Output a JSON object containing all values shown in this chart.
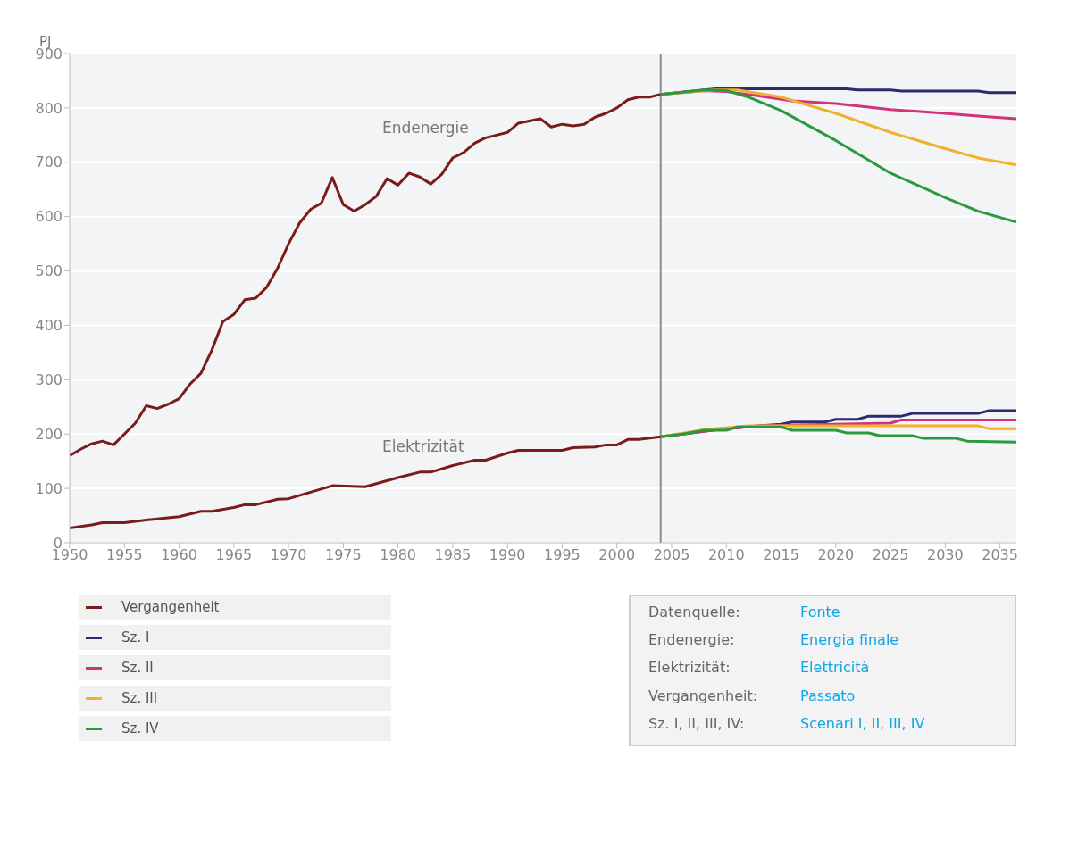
{
  "chart_data": {
    "type": "line",
    "ylabel": "PJ",
    "xlim": [
      1950,
      2036.5
    ],
    "xticks": [
      1950,
      1955,
      1960,
      1965,
      1970,
      1975,
      1980,
      1985,
      1990,
      1995,
      2000,
      2005,
      2010,
      2015,
      2020,
      2025,
      2030,
      2035
    ],
    "ylim": [
      0,
      900
    ],
    "yticks": [
      0,
      100,
      200,
      300,
      400,
      500,
      600,
      700,
      800,
      900
    ],
    "grid": "y",
    "legend": "bottom left",
    "marker": "none",
    "line_style": "solid",
    "ref_lines": [
      {
        "axis": "x",
        "value": 2004,
        "color": "#8c8c8c"
      }
    ],
    "series": [
      {
        "name": "Vergangenheit",
        "color": "#7b1c1c",
        "x": [
          1950,
          1951,
          1952,
          1953,
          1954,
          1955,
          1956,
          1957,
          1958,
          1959,
          1960,
          1961,
          1962,
          1963,
          1964,
          1965,
          1966,
          1967,
          1968,
          1969,
          1970,
          1971,
          1972,
          1973,
          1974,
          1975,
          1976,
          1977,
          1978,
          1979,
          1980,
          1981,
          1982,
          1983,
          1984,
          1985,
          1986,
          1987,
          1988,
          1989,
          1990,
          1991,
          1992,
          1993,
          1994,
          1995,
          1996,
          1997,
          1998,
          1999,
          2000,
          2001,
          2002,
          2003,
          2004
        ],
        "values": [
          160,
          172,
          182,
          187,
          180,
          200,
          220,
          252,
          247,
          255,
          265,
          292,
          312,
          355,
          407,
          420,
          447,
          450,
          470,
          505,
          550,
          588,
          613,
          625,
          672,
          622,
          610,
          622,
          637,
          670,
          658,
          680,
          673,
          660,
          678,
          708,
          718,
          735,
          745,
          750,
          755,
          772,
          776,
          780,
          765,
          770,
          767,
          770,
          783,
          790,
          800,
          815,
          820,
          820,
          825
        ]
      },
      {
        "name": "Sz. I",
        "color": "#2e2a6e",
        "x": [
          2004,
          2006,
          2008,
          2009,
          2015,
          2021,
          2022,
          2025,
          2026,
          2030,
          2033,
          2034,
          2036.5
        ],
        "values": [
          825,
          829,
          833,
          835,
          835,
          835,
          833,
          833,
          831,
          831,
          831,
          828,
          828
        ]
      },
      {
        "name": "Sz. II",
        "color": "#d2327a",
        "x": [
          2004,
          2008,
          2010,
          2013,
          2016,
          2020,
          2025,
          2030,
          2033,
          2036.5
        ],
        "values": [
          825,
          832,
          830,
          822,
          813,
          808,
          797,
          790,
          785,
          780
        ]
      },
      {
        "name": "Sz. III",
        "color": "#f0b030",
        "x": [
          2004,
          2009,
          2011,
          2015,
          2020,
          2025,
          2030,
          2033,
          2036.5
        ],
        "values": [
          825,
          833,
          833,
          820,
          790,
          755,
          725,
          708,
          695
        ]
      },
      {
        "name": "Sz. IV",
        "color": "#2a9a40",
        "x": [
          2004,
          2008,
          2010,
          2012,
          2015,
          2020,
          2025,
          2030,
          2033,
          2036.5
        ],
        "values": [
          825,
          833,
          832,
          820,
          795,
          740,
          680,
          635,
          610,
          590
        ]
      },
      {
        "color": "#7b1c1c",
        "x": [
          1950,
          1952,
          1953,
          1955,
          1957,
          1960,
          1962,
          1963,
          1965,
          1966,
          1967,
          1969,
          1970,
          1972,
          1974,
          1977,
          1980,
          1982,
          1983,
          1985,
          1987,
          1988,
          1990,
          1991,
          1995,
          1996,
          1998,
          1999,
          2000,
          2001,
          2002,
          2004
        ],
        "values": [
          27,
          33,
          37,
          37,
          42,
          48,
          58,
          58,
          65,
          70,
          70,
          80,
          81,
          93,
          105,
          103,
          120,
          130,
          130,
          142,
          152,
          152,
          165,
          170,
          170,
          175,
          176,
          180,
          180,
          190,
          190,
          195
        ]
      },
      {
        "color": "#2e2a6e",
        "x": [
          2004,
          2010,
          2013,
          2015,
          2016,
          2019,
          2020,
          2022,
          2023,
          2026,
          2027,
          2033,
          2034,
          2036.5
        ],
        "values": [
          195,
          210,
          215,
          218,
          222,
          222,
          227,
          227,
          233,
          233,
          238,
          238,
          243,
          243
        ]
      },
      {
        "color": "#d2327a",
        "x": [
          2004,
          2010,
          2013,
          2020,
          2025,
          2026,
          2036.5
        ],
        "values": [
          195,
          210,
          215,
          218,
          220,
          226,
          226
        ]
      },
      {
        "color": "#f0b030",
        "x": [
          2004,
          2008,
          2012,
          2015,
          2033,
          2034,
          2036.5
        ],
        "values": [
          195,
          208,
          215,
          215,
          215,
          210,
          210
        ]
      },
      {
        "color": "#2a9a40",
        "x": [
          2004,
          2006,
          2008,
          2010,
          2011,
          2015,
          2016,
          2020,
          2021,
          2023,
          2024,
          2027,
          2028,
          2031,
          2032,
          2036.5
        ],
        "values": [
          195,
          200,
          207,
          207,
          213,
          213,
          207,
          207,
          202,
          202,
          197,
          197,
          192,
          192,
          187,
          185
        ]
      }
    ],
    "annotations": [
      "Endenergie",
      "Elektrizität",
      "Datenquelle:",
      "Fonte",
      "Endenergie:",
      "Energia finale",
      "Elektrizität:",
      "Elettricità",
      "Vergangenheit:",
      "Passato",
      "Sz. I, II, III, IV:",
      "Scenari I, II, III, IV"
    ]
  }
}
